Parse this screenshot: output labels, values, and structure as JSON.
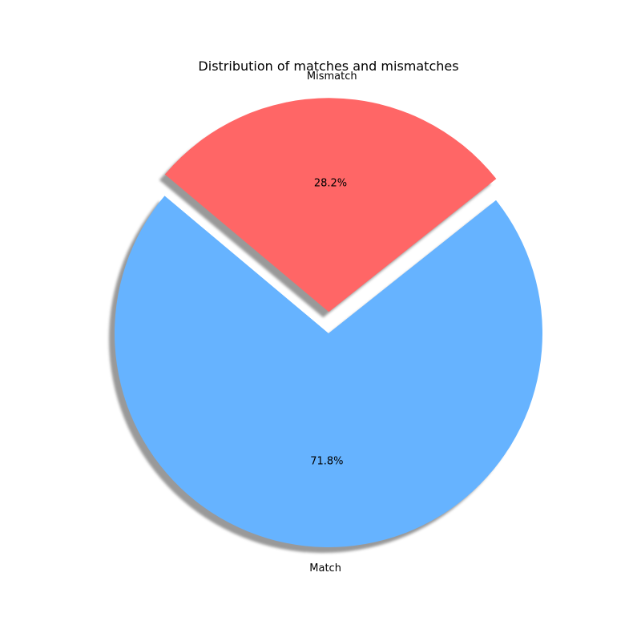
{
  "chart_data": {
    "type": "pie",
    "title": "Distribution of matches and mismatches",
    "categories": [
      "Match",
      "Mismatch"
    ],
    "values": [
      71.8,
      28.2
    ],
    "value_labels": [
      "71.8%",
      "28.2%"
    ],
    "colors": [
      "#66b3ff",
      "#ff6666"
    ],
    "exploded": [
      "Mismatch"
    ],
    "shadow": true,
    "legend": false
  }
}
